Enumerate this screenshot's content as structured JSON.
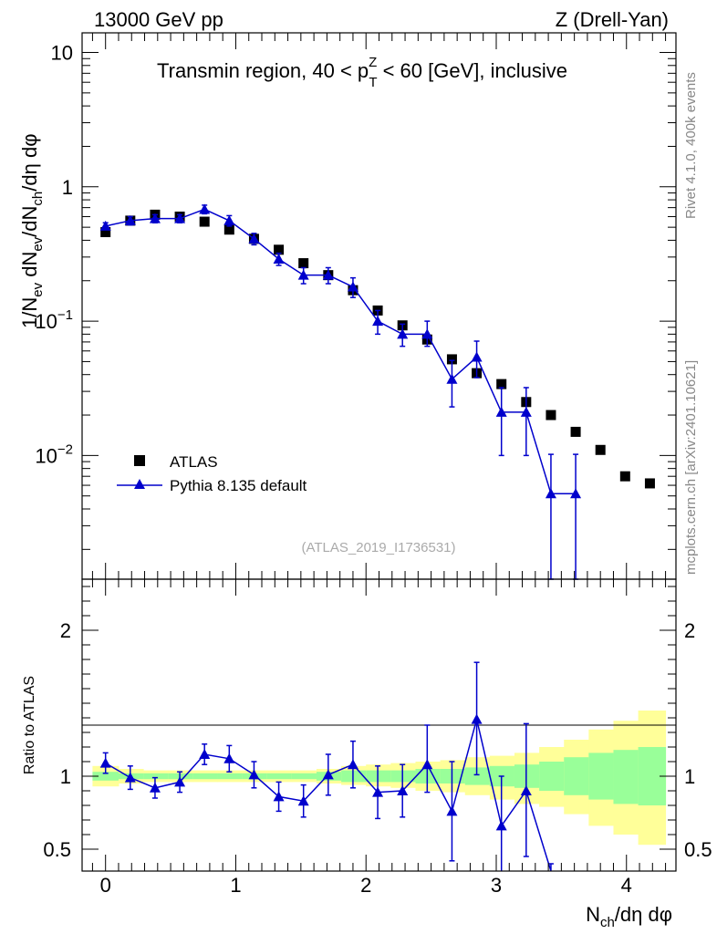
{
  "header": {
    "left": "13000 GeV pp",
    "right": "Z (Drell-Yan)"
  },
  "side_labels": {
    "rivet": "Rivet 4.1.0,  400k events",
    "mcplots": "mcplots.cern.ch [arXiv:2401.10621]"
  },
  "chart_data": [
    {
      "type": "scatter",
      "panel": "main",
      "title_parts": {
        "pre": "Transmin region, 40 < p",
        "sup": "Z",
        "sub": "T",
        "post": " < 60 [GeV], inclusive"
      },
      "ylabel": "1/N_ev dN_ev/dN_ch/dη dφ",
      "ylabel_parts": [
        "1/N",
        "ev",
        " dN",
        "ev",
        "/dN",
        "ch",
        "/dη dφ"
      ],
      "yscale": "log",
      "ylim": [
        0.0012,
        14
      ],
      "xlim": [
        -0.18,
        4.38
      ],
      "ytick_labels": [
        {
          "value": 10,
          "label": "10",
          "sup": ""
        },
        {
          "value": 1,
          "label": "1",
          "sup": ""
        },
        {
          "value": 0.1,
          "label": "10",
          "sup": "−1"
        },
        {
          "value": 0.01,
          "label": "10",
          "sup": "−2"
        }
      ],
      "watermark": "(ATLAS_2019_I1736531)",
      "legend": {
        "position": "lower-left",
        "entries": [
          "ATLAS",
          "Pythia 8.135 default"
        ]
      },
      "series": [
        {
          "name": "ATLAS",
          "marker": "square",
          "color": "#000000",
          "x": [
            0.0,
            0.19,
            0.38,
            0.57,
            0.76,
            0.95,
            1.14,
            1.33,
            1.52,
            1.71,
            1.9,
            2.09,
            2.28,
            2.47,
            2.66,
            2.85,
            3.04,
            3.23,
            3.42,
            3.61,
            3.8,
            3.99,
            4.18
          ],
          "y": [
            0.46,
            0.56,
            0.62,
            0.6,
            0.55,
            0.48,
            0.41,
            0.34,
            0.27,
            0.22,
            0.17,
            0.12,
            0.093,
            0.073,
            0.052,
            0.041,
            0.034,
            0.025,
            0.02,
            0.015,
            0.011,
            0.007,
            0.0062
          ]
        },
        {
          "name": "Pythia 8.135 default",
          "marker": "triangle",
          "color": "#0000cc",
          "x": [
            0.0,
            0.19,
            0.38,
            0.57,
            0.76,
            0.95,
            1.14,
            1.33,
            1.52,
            1.71,
            1.9,
            2.09,
            2.28,
            2.47,
            2.66,
            2.85,
            3.04,
            3.23,
            3.42,
            3.61
          ],
          "y": [
            0.51,
            0.56,
            0.58,
            0.58,
            0.68,
            0.56,
            0.41,
            0.29,
            0.22,
            0.22,
            0.18,
            0.1,
            0.08,
            0.08,
            0.037,
            0.054,
            0.021,
            0.021,
            0.0052,
            0.0052
          ],
          "yerr_low": [
            0.03,
            0.04,
            0.04,
            0.04,
            0.05,
            0.05,
            0.04,
            0.03,
            0.03,
            0.03,
            0.03,
            0.02,
            0.015,
            0.015,
            0.014,
            0.016,
            0.011,
            0.011,
            0.005,
            0.005
          ],
          "yerr_high": [
            0.03,
            0.04,
            0.04,
            0.04,
            0.05,
            0.05,
            0.04,
            0.03,
            0.03,
            0.03,
            0.03,
            0.02,
            0.015,
            0.02,
            0.014,
            0.017,
            0.011,
            0.011,
            0.005,
            0.005
          ]
        }
      ]
    },
    {
      "type": "line",
      "panel": "ratio",
      "ylabel": "Ratio to ATLAS",
      "xlabel_parts": [
        "N",
        "ch",
        "/dη dφ"
      ],
      "ylim": [
        0.35,
        2.35
      ],
      "xlim": [
        -0.18,
        4.38
      ],
      "ytick_labels": [
        {
          "value": 2,
          "label": "2"
        },
        {
          "value": 1,
          "label": "1"
        },
        {
          "value": 0.5,
          "label": "0.5"
        }
      ],
      "xtick_labels": [
        {
          "value": 0,
          "label": "0"
        },
        {
          "value": 1,
          "label": "1"
        },
        {
          "value": 2,
          "label": "2"
        },
        {
          "value": 3,
          "label": "3"
        },
        {
          "value": 4,
          "label": "4"
        }
      ],
      "bands": {
        "edges": [
          -0.1,
          0.1,
          0.29,
          0.48,
          0.67,
          0.86,
          1.05,
          1.24,
          1.43,
          1.62,
          1.81,
          2.0,
          2.19,
          2.38,
          2.57,
          2.76,
          2.95,
          3.14,
          3.33,
          3.52,
          3.71,
          3.9,
          4.09,
          4.3
        ],
        "green_low": [
          0.97,
          0.98,
          0.98,
          0.98,
          0.98,
          0.98,
          0.98,
          0.98,
          0.98,
          0.97,
          0.96,
          0.96,
          0.96,
          0.95,
          0.95,
          0.94,
          0.93,
          0.92,
          0.9,
          0.87,
          0.84,
          0.81,
          0.8
        ],
        "green_high": [
          1.03,
          1.02,
          1.02,
          1.02,
          1.02,
          1.02,
          1.02,
          1.02,
          1.02,
          1.03,
          1.04,
          1.04,
          1.04,
          1.05,
          1.05,
          1.06,
          1.07,
          1.08,
          1.1,
          1.13,
          1.16,
          1.18,
          1.2
        ],
        "yellow_low": [
          0.93,
          0.95,
          0.96,
          0.96,
          0.96,
          0.96,
          0.96,
          0.96,
          0.96,
          0.95,
          0.94,
          0.93,
          0.92,
          0.9,
          0.89,
          0.87,
          0.84,
          0.81,
          0.79,
          0.74,
          0.66,
          0.6,
          0.53
        ],
        "yellow_high": [
          1.07,
          1.05,
          1.04,
          1.04,
          1.04,
          1.04,
          1.04,
          1.04,
          1.04,
          1.05,
          1.07,
          1.08,
          1.09,
          1.1,
          1.11,
          1.13,
          1.14,
          1.16,
          1.2,
          1.25,
          1.32,
          1.38,
          1.45
        ]
      },
      "series": [
        {
          "name": "Pythia 8.135 default",
          "color": "#0000cc",
          "x": [
            0.0,
            0.19,
            0.38,
            0.57,
            0.76,
            0.95,
            1.14,
            1.33,
            1.52,
            1.71,
            1.9,
            2.09,
            2.28,
            2.47,
            2.66,
            2.85,
            3.04,
            3.23,
            3.42
          ],
          "y": [
            1.09,
            0.99,
            0.92,
            0.96,
            1.15,
            1.12,
            1.01,
            0.86,
            0.83,
            1.01,
            1.08,
            0.89,
            0.9,
            1.08,
            0.76,
            1.39,
            0.66,
            0.9,
            0.2
          ],
          "yerr_low": [
            0.07,
            0.08,
            0.07,
            0.07,
            0.07,
            0.09,
            0.09,
            0.1,
            0.11,
            0.14,
            0.16,
            0.18,
            0.18,
            0.19,
            0.34,
            0.38,
            0.33,
            0.45,
            0.2
          ],
          "yerr_high": [
            0.07,
            0.08,
            0.07,
            0.07,
            0.07,
            0.09,
            0.09,
            0.1,
            0.11,
            0.14,
            0.16,
            0.18,
            0.18,
            0.27,
            0.34,
            0.39,
            0.34,
            0.46,
            0.2
          ]
        }
      ]
    }
  ]
}
